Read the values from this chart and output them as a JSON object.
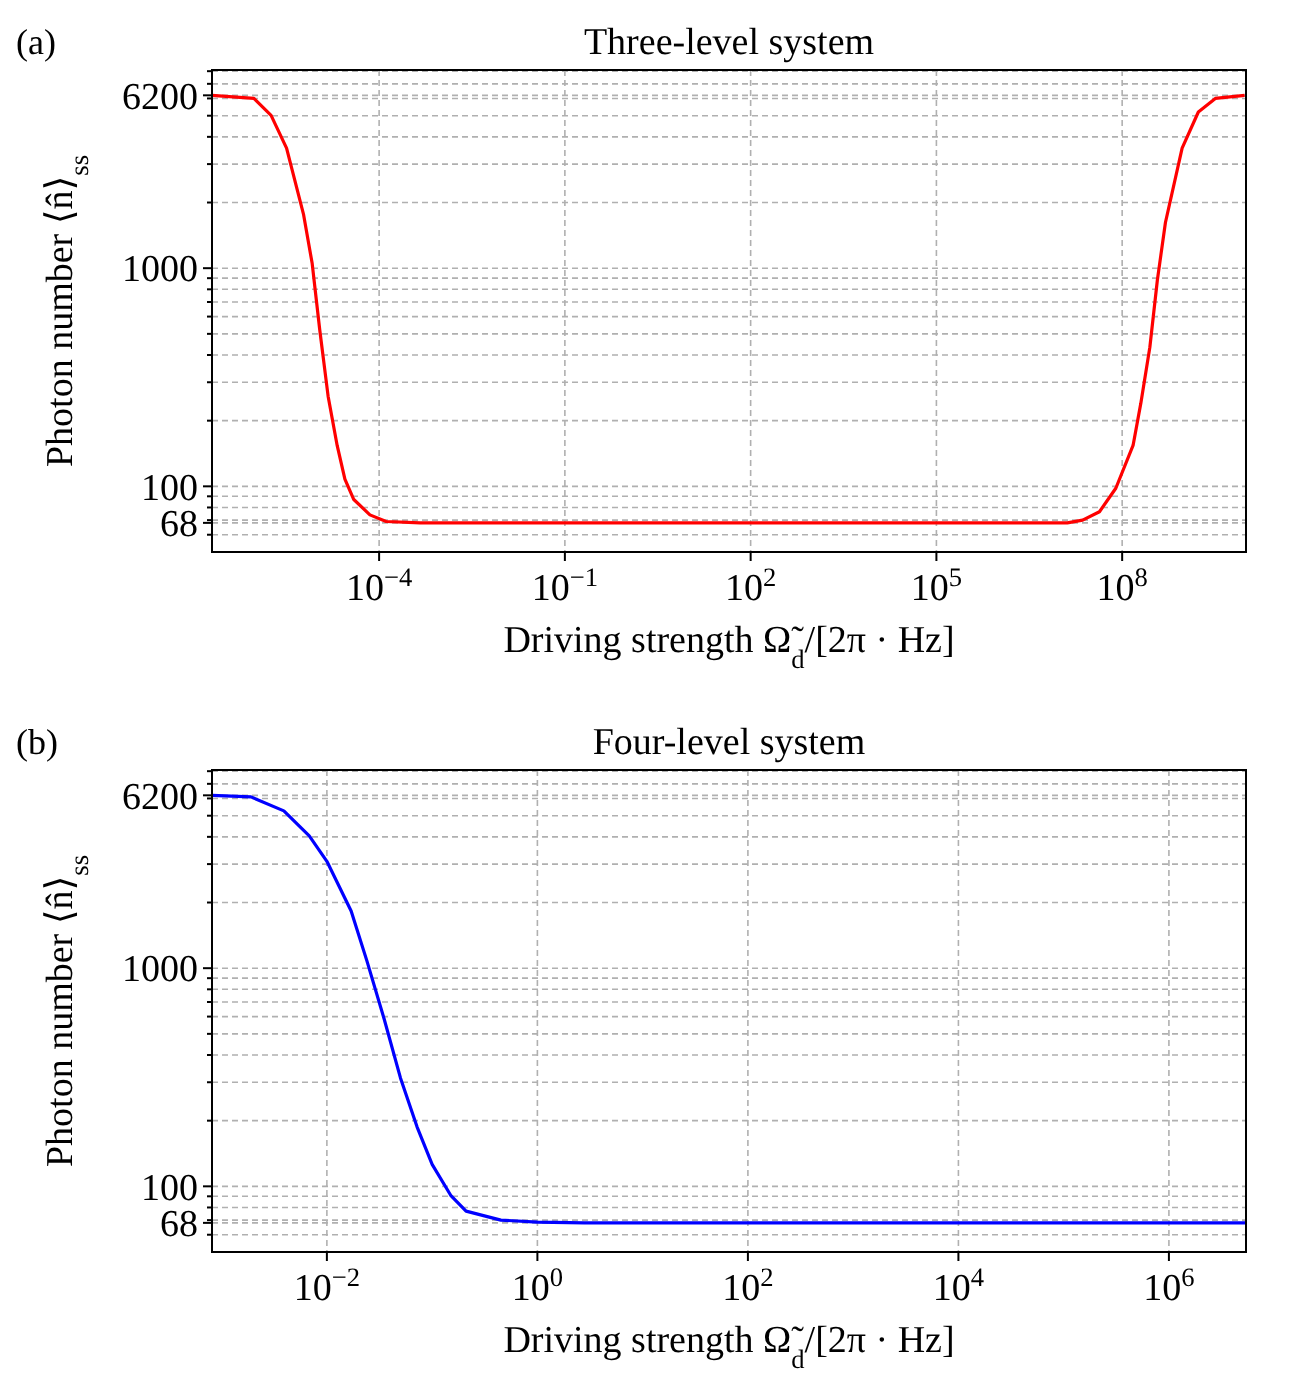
{
  "chart_data": [
    {
      "type": "line",
      "title": "Three-level system",
      "xlabel": "Driving strength Ω̃$_{d}$/[2π · Hz]",
      "ylabel": "Photon number ⟨n̂⟩$_{ss}$",
      "annotations": [
        "(a)"
      ],
      "log": "xy",
      "grid": true,
      "marker": "none",
      "line_style": "solid",
      "xlim": [
        2e-07,
        10000000000.0
      ],
      "xticks": [
        {
          "value": 0.0001,
          "label": "10$^{−4}$"
        },
        {
          "value": 0.1,
          "label": "10$^{−1}$"
        },
        {
          "value": 100,
          "label": "10$^{2}$"
        },
        {
          "value": 100000.0,
          "label": "10$^{5}$"
        },
        {
          "value": 100000000.0,
          "label": "10$^{8}$"
        }
      ],
      "ylim": [
        50,
        8100
      ],
      "yticks": [
        {
          "value": 60,
          "label": null
        },
        68,
        {
          "value": 70,
          "label": null
        },
        {
          "value": 80,
          "label": null
        },
        {
          "value": 90,
          "label": null
        },
        100,
        {
          "value": 200,
          "label": null
        },
        {
          "value": 300,
          "label": null
        },
        {
          "value": 400,
          "label": null
        },
        {
          "value": 500,
          "label": null
        },
        {
          "value": 600,
          "label": null
        },
        {
          "value": 700,
          "label": null
        },
        {
          "value": 800,
          "label": null
        },
        {
          "value": 900,
          "label": null
        },
        1000,
        {
          "value": 2000,
          "label": null
        },
        {
          "value": 3000,
          "label": null
        },
        {
          "value": 4000,
          "label": null
        },
        {
          "value": 5000,
          "label": null
        },
        6200,
        {
          "value": 6000,
          "label": null
        },
        {
          "value": 7000,
          "label": null
        },
        {
          "value": 8000,
          "label": null
        }
      ],
      "series": [
        {
          "color": "#ff0000",
          "x": [
            2e-07,
            9.5e-07,
            1.8e-06,
            3.2e-06,
            6e-06,
            8.3e-06,
            1.1e-05,
            1.5e-05,
            2.1e-05,
            2.8e-05,
            3.9e-05,
            7.1e-05,
            0.00013,
            0.00046,
            1,
            13000000.0,
            23000000.0,
            43000000.0,
            79000000.0,
            150000000.0,
            200000000.0,
            280000000.0,
            370000000.0,
            500000000.0,
            930000000.0,
            1700000000.0,
            3200000000.0,
            9500000000.0
          ],
          "values": [
            6200,
            6000,
            5020,
            3550,
            1770,
            1050,
            521,
            259,
            154,
            108,
            87,
            74,
            69,
            68,
            68,
            68,
            70,
            76.5,
            98,
            154,
            240,
            434,
            880,
            1620,
            3550,
            5200,
            6000,
            6200
          ]
        }
      ]
    },
    {
      "type": "line",
      "title": "Four-level system",
      "xlabel": "Driving strength Ω̃$_{d}$/[2π · Hz]",
      "ylabel": "Photon number ⟨n̂⟩$_{ss}$",
      "annotations": [
        "(b)"
      ],
      "log": "xy",
      "grid": true,
      "marker": "none",
      "line_style": "solid",
      "xlim": [
        0.00081,
        5400000.0
      ],
      "xticks": [
        {
          "value": 0.01,
          "label": "10$^{−2}$"
        },
        {
          "value": 1,
          "label": "10$^{0}$"
        },
        {
          "value": 100,
          "label": "10$^{2}$"
        },
        {
          "value": 10000.0,
          "label": "10$^{4}$"
        },
        {
          "value": 1000000.0,
          "label": "10$^{6}$"
        }
      ],
      "ylim": [
        50,
        8100
      ],
      "yticks": [
        {
          "value": 60,
          "label": null
        },
        68,
        {
          "value": 70,
          "label": null
        },
        {
          "value": 80,
          "label": null
        },
        {
          "value": 90,
          "label": null
        },
        100,
        {
          "value": 200,
          "label": null
        },
        {
          "value": 300,
          "label": null
        },
        {
          "value": 400,
          "label": null
        },
        {
          "value": 500,
          "label": null
        },
        {
          "value": 600,
          "label": null
        },
        {
          "value": 700,
          "label": null
        },
        {
          "value": 800,
          "label": null
        },
        {
          "value": 900,
          "label": null
        },
        1000,
        {
          "value": 2000,
          "label": null
        },
        {
          "value": 3000,
          "label": null
        },
        {
          "value": 4000,
          "label": null
        },
        {
          "value": 5000,
          "label": null
        },
        6200,
        {
          "value": 6000,
          "label": null
        },
        {
          "value": 7000,
          "label": null
        },
        {
          "value": 8000,
          "label": null
        }
      ],
      "series": [
        {
          "color": "#0000ff",
          "x": [
            0.00081,
            0.0019,
            0.0039,
            0.0068,
            0.01,
            0.017,
            0.024,
            0.035,
            0.05,
            0.072,
            0.1,
            0.15,
            0.21,
            0.45,
            1,
            2.8,
            5400000.0
          ],
          "values": [
            6200,
            6100,
            5260,
            4040,
            3090,
            1830,
            1080,
            585,
            314,
            187,
            126,
            91,
            77,
            70,
            68.5,
            68,
            68
          ]
        }
      ]
    }
  ]
}
